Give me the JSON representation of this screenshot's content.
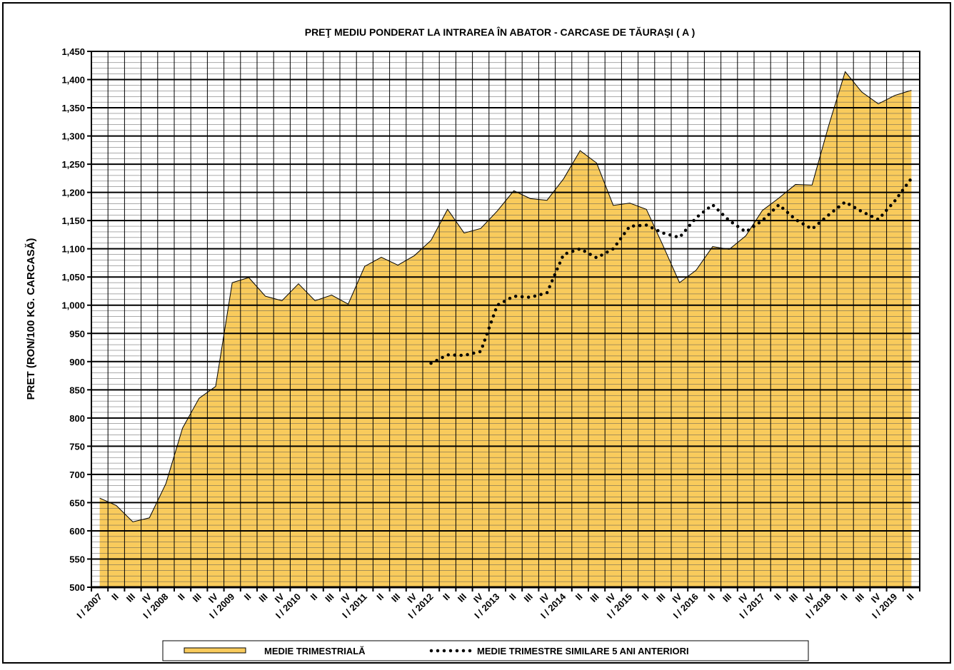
{
  "chart_data": {
    "type": "area",
    "title": "PREŢ MEDIU PONDERAT LA INTRAREA ÎN ABATOR - CARCASE DE TĂURAŞI ( A )",
    "y_label": "PRET (RON/100 KG. CARCASĂ)",
    "categories": [
      "I / 2007",
      "II",
      "III",
      "IV",
      "I / 2008",
      "II",
      "III",
      "IV",
      "I / 2009",
      "II",
      "III",
      "IV",
      "I / 2010",
      "II",
      "III",
      "IV",
      "I / 2011",
      "II",
      "III",
      "IV",
      "I / 2012",
      "II",
      "III",
      "IV",
      "I / 2013",
      "II",
      "III",
      "IV",
      "I / 2014",
      "II",
      "III",
      "IV",
      "I / 2015",
      "II",
      "III",
      "IV",
      "I / 2016",
      "II",
      "III",
      "IV",
      "I / 2017",
      "II",
      "III",
      "IV",
      "I / 2018",
      "II",
      "III",
      "IV",
      "I / 2019",
      "II"
    ],
    "series": [
      {
        "name": "MEDIE TRIMESTRIALĂ",
        "color": "#F9CB5C",
        "style": "area",
        "values": [
          658,
          645,
          616,
          623,
          684,
          782,
          835,
          856,
          1040,
          1049,
          1016,
          1008,
          1038,
          1008,
          1018,
          1002,
          1069,
          1085,
          1071,
          1088,
          1115,
          1170,
          1128,
          1136,
          1167,
          1203,
          1189,
          1186,
          1224,
          1274,
          1252,
          1177,
          1181,
          1170,
          1106,
          1040,
          1062,
          1104,
          1099,
          1123,
          1168,
          1190,
          1214,
          1213,
          1318,
          1414,
          1378,
          1357,
          1372,
          1381
        ]
      },
      {
        "name": "MEDIE TRIMESTRE SIMILARE 5 ANI ANTERIORI",
        "color": "#000000",
        "style": "dotted",
        "values": [
          null,
          null,
          null,
          null,
          null,
          null,
          null,
          null,
          null,
          null,
          null,
          null,
          null,
          null,
          null,
          null,
          null,
          null,
          null,
          null,
          897,
          912,
          911,
          918,
          1000,
          1016,
          1014,
          1022,
          1090,
          1100,
          1084,
          1100,
          1140,
          1142,
          1128,
          1120,
          1155,
          1178,
          1150,
          1130,
          1150,
          1178,
          1152,
          1135,
          1160,
          1183,
          1166,
          1152,
          1185,
          1225
        ]
      }
    ],
    "ylim": [
      500,
      1450
    ],
    "yticks": [
      500,
      550,
      600,
      650,
      700,
      750,
      800,
      850,
      900,
      950,
      {
        "value": 1000,
        "label": "1,000"
      },
      {
        "value": 1050,
        "label": "1,050"
      },
      {
        "value": 1100,
        "label": "1,100"
      },
      {
        "value": 1150,
        "label": "1,150"
      },
      {
        "value": 1200,
        "label": "1,200"
      },
      {
        "value": 1250,
        "label": "1,250"
      },
      {
        "value": 1300,
        "label": "1,300"
      },
      {
        "value": 1350,
        "label": "1,350"
      },
      {
        "value": 1400,
        "label": "1,400"
      },
      {
        "value": 1450,
        "label": "1,450"
      }
    ],
    "grid": true
  }
}
